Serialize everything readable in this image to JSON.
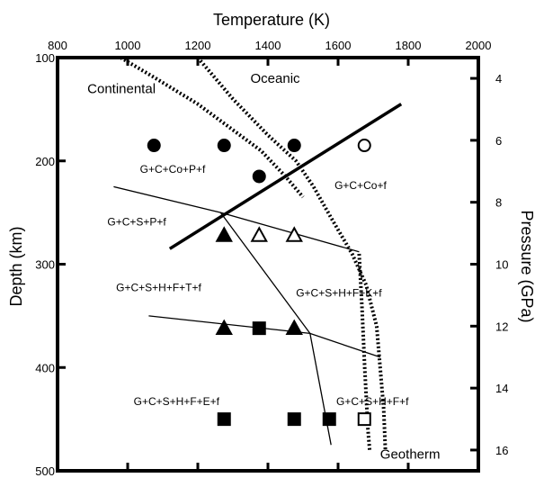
{
  "chart_data": {
    "type": "scatter",
    "title": "",
    "axes": {
      "top": {
        "label": "Temperature (K)",
        "range": [
          800,
          2000
        ],
        "ticks": [
          800,
          1000,
          1200,
          1400,
          1600,
          1800,
          2000
        ]
      },
      "left": {
        "label": "Depth (km)",
        "range": [
          100,
          500
        ],
        "ticks": [
          100,
          200,
          300,
          400,
          500
        ],
        "inverted": true
      },
      "right": {
        "label": "Pressure (GPa)",
        "range": [
          3.33,
          16.67
        ],
        "ticks": [
          4,
          6,
          8,
          10,
          12,
          14,
          16
        ],
        "inverted": true
      }
    },
    "curves": [
      {
        "name": "Oceanic",
        "style": "dotted",
        "points": [
          [
            1200,
            100
          ],
          [
            1300,
            140
          ],
          [
            1400,
            175
          ],
          [
            1480,
            200
          ],
          [
            1530,
            225
          ],
          [
            1580,
            255
          ],
          [
            1640,
            290
          ],
          [
            1680,
            320
          ],
          [
            1710,
            360
          ],
          [
            1720,
            400
          ],
          [
            1730,
            440
          ],
          [
            1735,
            480
          ]
        ]
      },
      {
        "name": "Continental",
        "style": "dotted",
        "points": [
          [
            980,
            100
          ],
          [
            1080,
            120
          ],
          [
            1200,
            145
          ],
          [
            1300,
            170
          ],
          [
            1380,
            190
          ],
          [
            1450,
            215
          ],
          [
            1500,
            235
          ]
        ]
      },
      {
        "name": "Geotherm",
        "style": "dotted",
        "points": [
          [
            1660,
            290
          ],
          [
            1668,
            340
          ],
          [
            1676,
            400
          ],
          [
            1685,
            460
          ],
          [
            1690,
            480
          ]
        ]
      }
    ],
    "boundaries": [
      {
        "style": "thick",
        "points": [
          [
            1120,
            285
          ],
          [
            1780,
            145
          ]
        ]
      },
      {
        "style": "thin",
        "points": [
          [
            960,
            225
          ],
          [
            1265,
            250
          ],
          [
            1660,
            288
          ]
        ]
      },
      {
        "style": "thin",
        "points": [
          [
            1265,
            250
          ],
          [
            1520,
            367
          ],
          [
            1580,
            475
          ]
        ]
      },
      {
        "style": "thin",
        "points": [
          [
            1060,
            350
          ],
          [
            1520,
            367
          ],
          [
            1720,
            390
          ]
        ]
      }
    ],
    "points": [
      {
        "shape": "circle",
        "filled": true,
        "x": 1075,
        "y": 185
      },
      {
        "shape": "circle",
        "filled": true,
        "x": 1275,
        "y": 185
      },
      {
        "shape": "circle",
        "filled": true,
        "x": 1475,
        "y": 185
      },
      {
        "shape": "circle",
        "filled": true,
        "x": 1375,
        "y": 215
      },
      {
        "shape": "circle",
        "filled": false,
        "x": 1675,
        "y": 185
      },
      {
        "shape": "triangle",
        "filled": true,
        "x": 1275,
        "y": 272
      },
      {
        "shape": "triangle",
        "filled": false,
        "x": 1375,
        "y": 272
      },
      {
        "shape": "triangle",
        "filled": false,
        "x": 1475,
        "y": 272
      },
      {
        "shape": "triangle",
        "filled": true,
        "x": 1275,
        "y": 362
      },
      {
        "shape": "triangle",
        "filled": true,
        "x": 1475,
        "y": 362
      },
      {
        "shape": "square",
        "filled": true,
        "x": 1375,
        "y": 362
      },
      {
        "shape": "square",
        "filled": true,
        "x": 1275,
        "y": 450
      },
      {
        "shape": "square",
        "filled": true,
        "x": 1475,
        "y": 450
      },
      {
        "shape": "square",
        "filled": true,
        "x": 1575,
        "y": 450
      },
      {
        "shape": "square",
        "filled": false,
        "x": 1675,
        "y": 450
      }
    ],
    "annotations": [
      {
        "text": "Continental",
        "x": 885,
        "y": 130
      },
      {
        "text": "Oceanic",
        "x": 1350,
        "y": 120
      },
      {
        "text": "G+C+Co+P+f",
        "x": 1035,
        "y": 207
      },
      {
        "text": "G+C+Co+f",
        "x": 1590,
        "y": 223
      },
      {
        "text": "G+C+S+P+f",
        "x": 942,
        "y": 258
      },
      {
        "text": "G+C+S+H+F+T+f",
        "x": 967,
        "y": 322
      },
      {
        "text": "G+C+S+H+F+K+f",
        "x": 1480,
        "y": 327
      },
      {
        "text": "G+C+S+H+F+E+f",
        "x": 1017,
        "y": 432
      },
      {
        "text": "G+C+S+H+F+f",
        "x": 1595,
        "y": 432
      },
      {
        "text": "Geotherm",
        "x": 1720,
        "y": 484
      }
    ]
  }
}
